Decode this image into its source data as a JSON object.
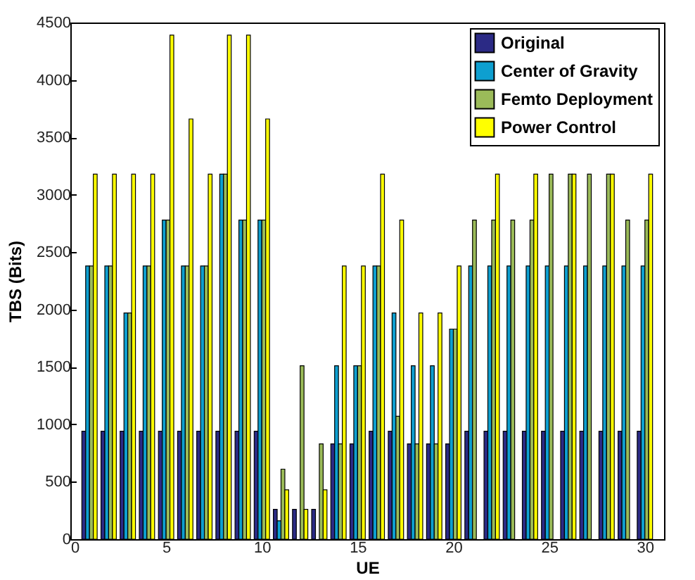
{
  "chart_data": {
    "type": "bar",
    "xlabel": "UE",
    "ylabel": "TBS (Bits)",
    "x": [
      1,
      2,
      3,
      4,
      5,
      6,
      7,
      8,
      9,
      10,
      11,
      12,
      13,
      14,
      15,
      16,
      17,
      18,
      19,
      20,
      21,
      22,
      23,
      24,
      25,
      26,
      27,
      28,
      29,
      30
    ],
    "xlim": [
      0,
      31
    ],
    "xticks": [
      0,
      5,
      10,
      15,
      20,
      25,
      30
    ],
    "ylim": [
      0,
      4500
    ],
    "yticks": [
      0,
      500,
      1000,
      1500,
      2000,
      2500,
      3000,
      3500,
      4000,
      4500
    ],
    "grid": false,
    "legend": "top right",
    "series": [
      {
        "name": "Original",
        "color": "#2b2a85",
        "values": [
          940,
          940,
          940,
          940,
          940,
          940,
          940,
          940,
          940,
          940,
          260,
          260,
          260,
          830,
          830,
          940,
          940,
          830,
          830,
          830,
          940,
          940,
          940,
          940,
          940,
          940,
          940,
          940,
          940,
          940
        ]
      },
      {
        "name": "Center of Gravity",
        "color": "#0e9fd0",
        "values": [
          2380,
          2380,
          1970,
          2380,
          2780,
          2380,
          2380,
          3180,
          2780,
          2780,
          160,
          null,
          null,
          1510,
          1510,
          2380,
          1970,
          1510,
          1510,
          1830,
          2380,
          2380,
          2380,
          2380,
          2380,
          2380,
          2380,
          2380,
          2380,
          2380
        ]
      },
      {
        "name": "Femto Deployment",
        "color": "#9bbb59",
        "values": [
          2380,
          2380,
          1970,
          2380,
          2780,
          2380,
          2380,
          3180,
          2780,
          2780,
          610,
          1510,
          830,
          830,
          1510,
          2380,
          1070,
          830,
          830,
          1830,
          2780,
          2780,
          2780,
          2780,
          3180,
          3180,
          3180,
          3180,
          2780,
          2780
        ]
      },
      {
        "name": "Power Control",
        "color": "#ffff00",
        "values": [
          3180,
          3180,
          3180,
          3180,
          4390,
          3660,
          3180,
          4390,
          4390,
          3660,
          430,
          260,
          430,
          2380,
          2380,
          3180,
          2780,
          1970,
          1970,
          2380,
          null,
          3180,
          null,
          3180,
          null,
          3180,
          null,
          3180,
          null,
          3180
        ]
      }
    ]
  }
}
